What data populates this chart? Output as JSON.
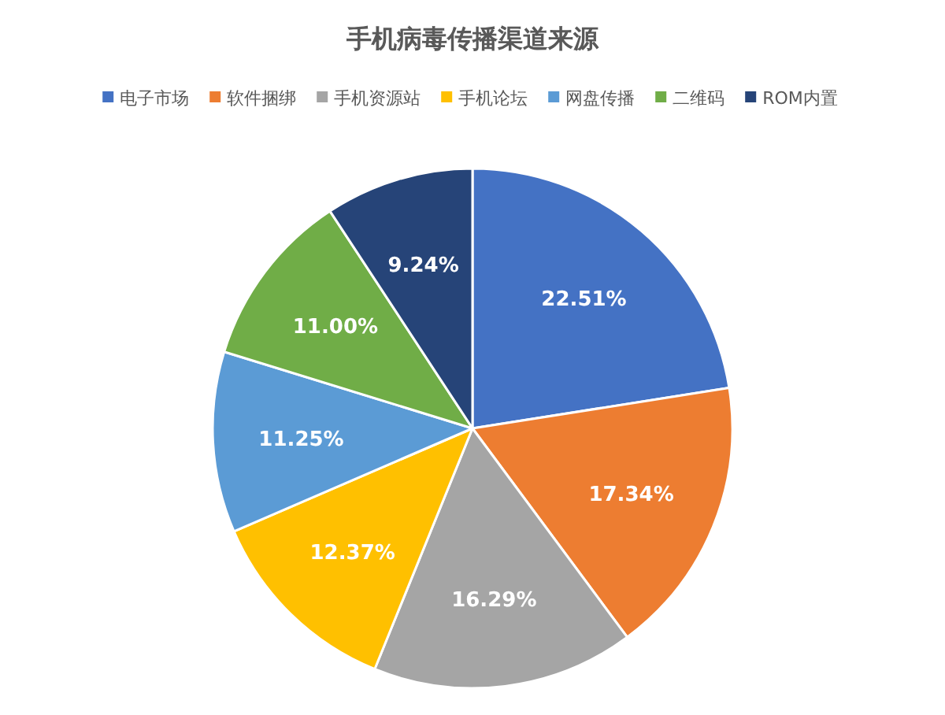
{
  "chart_data": {
    "type": "pie",
    "title": "手机病毒传播渠道来源",
    "categories": [
      "电子市场",
      "软件捆绑",
      "手机资源站",
      "手机论坛",
      "网盘传播",
      "二维码",
      "ROM内置"
    ],
    "values": [
      22.51,
      17.34,
      16.29,
      12.37,
      11.25,
      11.0,
      9.24
    ],
    "colors": [
      "#4472c4",
      "#ed7d31",
      "#a5a5a5",
      "#ffc000",
      "#5b9bd5",
      "#70ad47",
      "#264478"
    ],
    "value_labels": [
      "22.51%",
      "17.34%",
      "16.29%",
      "12.37%",
      "11.25%",
      "11.00%",
      "9.24%"
    ],
    "legend": "top"
  }
}
